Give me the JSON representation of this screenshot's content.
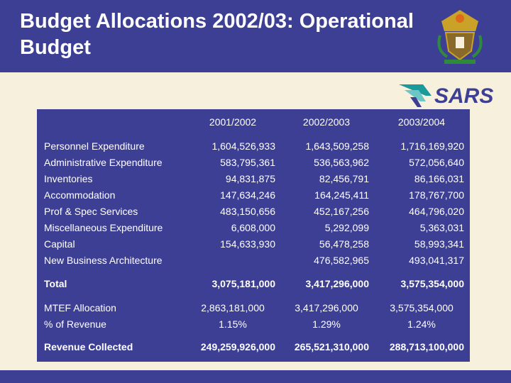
{
  "slide": {
    "title_line1": "Budget Allocations 2002/03: Operational",
    "title_line2": "Budget"
  },
  "logo": {
    "text": "SARS"
  },
  "table": {
    "headers": [
      "2001/2002",
      "2002/2003",
      "2003/2004"
    ],
    "expenditure_labels": [
      "Personnel Expenditure",
      "Administrative Expenditure",
      "Inventories",
      "Accommodation",
      "Prof & Spec Services",
      "Miscellaneous Expenditure",
      "Capital",
      "New Business Architecture"
    ],
    "col_2001": [
      "1,604,526,933",
      "583,795,361",
      "94,831,875",
      "147,634,246",
      "483,150,656",
      "6,608,000",
      "154,633,930"
    ],
    "col_2002": [
      "1,643,509,258",
      "536,563,962",
      "82,456,791",
      "164,245,411",
      "452,167,256",
      "5,292,099",
      "56,478,258",
      "476,582,965"
    ],
    "col_2003": [
      "1,716,169,920",
      "572,056,640",
      "86,166,031",
      "178,767,700",
      "464,796,020",
      "5,363,031",
      "58,993,341",
      "493,041,317"
    ],
    "total": {
      "label": "Total",
      "values": [
        "3,075,181,000",
        "3,417,296,000",
        "3,575,354,000"
      ]
    },
    "mtef": {
      "label": "MTEF Allocation",
      "values": [
        "2,863,181,000",
        "3,417,296,000",
        "3,575,354,000"
      ]
    },
    "pct_revenue": {
      "label": "% of Revenue",
      "values": [
        "1.15%",
        "1.29%",
        "1.24%"
      ]
    },
    "revenue": {
      "label": "Revenue Collected",
      "values": [
        "249,259,926,000",
        "265,521,310,000",
        "288,713,100,000"
      ]
    }
  }
}
